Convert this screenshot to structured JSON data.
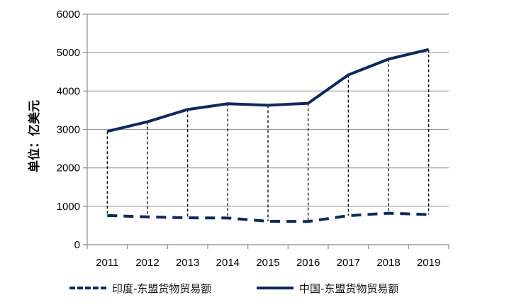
{
  "chart_data": {
    "type": "line",
    "title": "",
    "xlabel": "",
    "ylabel": "单位：亿美元",
    "categories": [
      "2011",
      "2012",
      "2013",
      "2014",
      "2015",
      "2016",
      "2017",
      "2018",
      "2019"
    ],
    "ylim": [
      0,
      6000
    ],
    "yticks": [
      0,
      1000,
      2000,
      3000,
      4000,
      5000,
      6000
    ],
    "grid": true,
    "legend_position": "bottom",
    "drop_lines": true,
    "series": [
      {
        "name": "印度-东盟货物贸易额",
        "values": [
          760,
          725,
          700,
          695,
          610,
          605,
          755,
          820,
          785
        ],
        "color": "#0d2a5c",
        "dash": true
      },
      {
        "name": "中国-东盟货物贸易额",
        "values": [
          2950,
          3200,
          3520,
          3670,
          3630,
          3680,
          4420,
          4830,
          5080
        ],
        "color": "#0d2a5c",
        "dash": false
      }
    ]
  }
}
